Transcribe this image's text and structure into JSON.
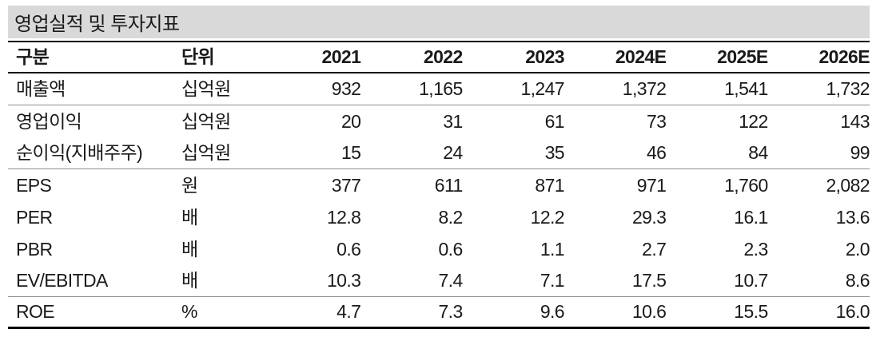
{
  "title": "영업실적 및 투자지표",
  "colors": {
    "title_bar_bg": "#d9d9d9",
    "heavy_rule": "#000000",
    "light_rule": "#8c8c8c",
    "text": "#1a1a1a"
  },
  "table": {
    "columns": [
      "구분",
      "단위",
      "2021",
      "2022",
      "2023",
      "2024E",
      "2025E",
      "2026E"
    ],
    "rows": [
      {
        "label": "매출액",
        "unit": "십억원",
        "values": [
          "932",
          "1,165",
          "1,247",
          "1,372",
          "1,541",
          "1,732"
        ],
        "divider_after": true
      },
      {
        "label": "영업이익",
        "unit": "십억원",
        "values": [
          "20",
          "31",
          "61",
          "73",
          "122",
          "143"
        ],
        "divider_after": false
      },
      {
        "label": "순이익(지배주주)",
        "unit": "십억원",
        "values": [
          "15",
          "24",
          "35",
          "46",
          "84",
          "99"
        ],
        "divider_after": true
      },
      {
        "label": "EPS",
        "unit": "원",
        "values": [
          "377",
          "611",
          "871",
          "971",
          "1,760",
          "2,082"
        ],
        "divider_after": false
      },
      {
        "label": "PER",
        "unit": "배",
        "values": [
          "12.8",
          "8.2",
          "12.2",
          "29.3",
          "16.1",
          "13.6"
        ],
        "divider_after": false
      },
      {
        "label": "PBR",
        "unit": "배",
        "values": [
          "0.6",
          "0.6",
          "1.1",
          "2.7",
          "2.3",
          "2.0"
        ],
        "divider_after": false
      },
      {
        "label": "EV/EBITDA",
        "unit": "배",
        "values": [
          "10.3",
          "7.4",
          "7.1",
          "17.5",
          "10.7",
          "8.6"
        ],
        "divider_after": true
      },
      {
        "label": "ROE",
        "unit": "%",
        "values": [
          "4.7",
          "7.3",
          "9.6",
          "10.6",
          "15.5",
          "16.0"
        ],
        "divider_after": false
      }
    ]
  }
}
